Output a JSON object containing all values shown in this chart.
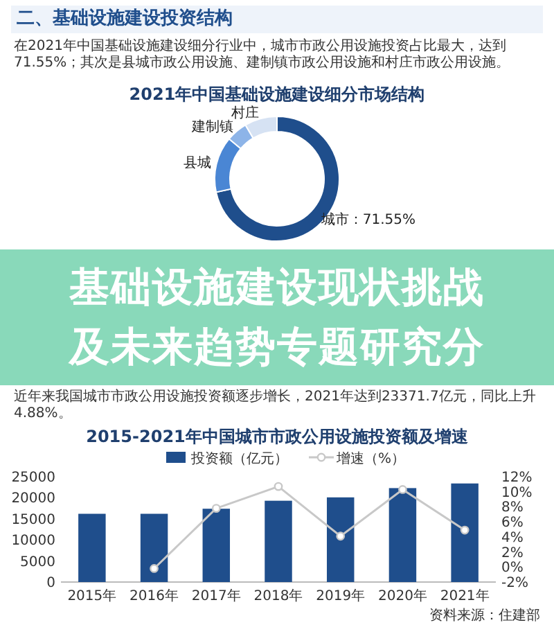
{
  "chart_data": [
    {
      "type": "donut",
      "title": "2021年中国基础设施建设细分市场结构",
      "categories": [
        "城市",
        "县城",
        "建制镇",
        "村庄"
      ],
      "values": [
        71.55,
        14.5,
        5.5,
        8.45
      ],
      "colors": [
        "#1f4e8c",
        "#4a86d4",
        "#8db4e8",
        "#d6e2f3"
      ],
      "value_labels": [
        "：71.55%",
        null,
        null,
        null
      ],
      "annotations": [
        "二、基础设施建设投资结构",
        "在2021年中国基础设施建设细分行业中，城市市政公用设施投资占比最大，达到71.55%；其次是县城市政公用设施、建制镇市政公用设施和村庄市政公用设施。",
        "基础设施建设现状挑战及未来趋势专题研究分"
      ]
    },
    {
      "type": "bar",
      "title": "2015-2021年中国城市市政公用设施投资额及增速",
      "categories": [
        "2015年",
        "2016年",
        "2017年",
        "2018年",
        "2019年",
        "2020年",
        "2021年"
      ],
      "series": [
        {
          "name": "投资额（亿元）",
          "color": "#1f4e8c",
          "values": [
            16200,
            16200,
            17400,
            19300,
            20100,
            22300,
            23400
          ]
        },
        {
          "name": "增速（%）",
          "type": "line",
          "axis": "y2",
          "color": "#c8c8c8",
          "values": [
            null,
            -0.2,
            7.8,
            10.7,
            4.1,
            10.3,
            4.9
          ]
        }
      ],
      "ylim": [
        0,
        25000
      ],
      "yticks": [
        0,
        5000,
        10000,
        15000,
        20000,
        25000
      ],
      "y2lim": [
        -2,
        12
      ],
      "y2ticks": [
        {
          "value": -2,
          "label": "-2%"
        },
        {
          "value": 0,
          "label": "0%"
        },
        {
          "value": 2,
          "label": "2%"
        },
        {
          "value": 4,
          "label": "4%"
        },
        {
          "value": 6,
          "label": "6%"
        },
        {
          "value": 8,
          "label": "8%"
        },
        {
          "value": 10,
          "label": "10%"
        },
        {
          "value": 12,
          "label": "12%"
        }
      ],
      "legend": "top",
      "marker": "circle",
      "grid": false,
      "annotations": [
        "近年来我国城市市政公用设施投资额逐步增长，2021年达到23371.7亿元，同比上升4.88%。",
        "资料来源：住建部"
      ]
    }
  ]
}
